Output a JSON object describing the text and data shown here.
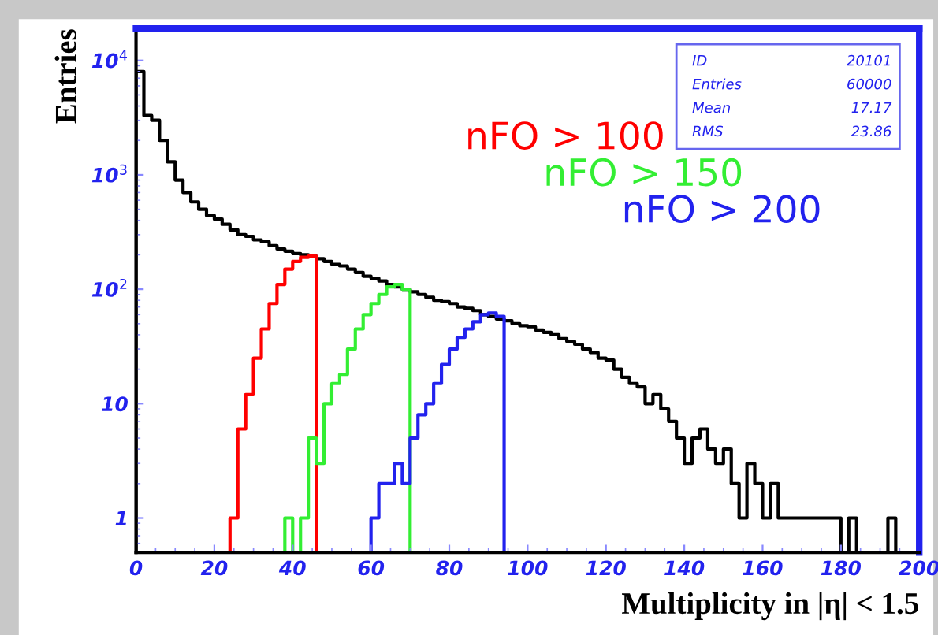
{
  "chart_data": {
    "type": "histogram",
    "xlabel": "Multiplicity in |η| < 1.5",
    "ylabel": "Entries",
    "bins": [
      0,
      2,
      4,
      6,
      8,
      10,
      12,
      14,
      16,
      18,
      20,
      22,
      24,
      26,
      28,
      30,
      32,
      34,
      36,
      38,
      40,
      42,
      44,
      46,
      48,
      50,
      52,
      54,
      56,
      58,
      60,
      62,
      64,
      66,
      68,
      70,
      72,
      74,
      76,
      78,
      80,
      82,
      84,
      86,
      88,
      90,
      92,
      94,
      96,
      98,
      100,
      102,
      104,
      106,
      108,
      110,
      112,
      114,
      116,
      118,
      120,
      122,
      124,
      126,
      128,
      130,
      132,
      134,
      136,
      138,
      140,
      142,
      144,
      146,
      148,
      150,
      152,
      154,
      156,
      158,
      160,
      162,
      164,
      166,
      168,
      170,
      172,
      174,
      176,
      178,
      180,
      182,
      184,
      186,
      188,
      190,
      192,
      194,
      196,
      198,
      200
    ],
    "series": [
      {
        "color": "#000000",
        "values": [
          8000,
          3300,
          3000,
          2000,
          1300,
          900,
          700,
          580,
          500,
          440,
          410,
          370,
          330,
          300,
          290,
          270,
          260,
          240,
          225,
          215,
          205,
          200,
          195,
          185,
          175,
          165,
          160,
          150,
          140,
          130,
          125,
          118,
          110,
          105,
          100,
          95,
          90,
          85,
          80,
          78,
          75,
          70,
          68,
          65,
          60,
          58,
          55,
          53,
          50,
          48,
          47,
          44,
          42,
          40,
          37,
          35,
          33,
          30,
          28,
          25,
          24,
          20,
          17,
          15,
          14,
          10,
          12,
          9,
          7,
          5,
          3,
          5,
          6,
          4,
          3,
          4,
          2,
          1,
          3,
          2,
          1,
          2,
          1,
          1,
          1,
          1,
          1,
          1,
          1,
          1,
          null,
          1,
          null,
          null,
          null,
          null,
          1,
          null,
          null,
          null
        ]
      },
      {
        "name": "nFO > 100",
        "color": "#ff0000",
        "values": [
          null,
          null,
          null,
          null,
          null,
          null,
          null,
          null,
          null,
          null,
          null,
          null,
          1,
          6,
          12,
          25,
          45,
          75,
          110,
          150,
          175,
          190,
          195,
          null,
          null,
          null,
          null,
          null,
          null,
          null,
          null,
          null,
          null,
          null,
          null,
          null,
          null,
          null,
          null,
          null,
          null,
          null,
          null,
          null,
          null,
          null,
          null,
          null,
          null,
          null,
          null,
          null,
          null,
          null,
          null,
          null,
          null,
          null,
          null,
          null,
          null,
          null,
          null,
          null,
          null,
          null,
          null,
          null,
          null,
          null,
          null,
          null,
          null,
          null,
          null,
          null,
          null,
          null,
          null,
          null,
          null,
          null,
          null,
          null,
          null,
          null,
          null,
          null,
          null,
          null,
          null,
          null,
          null,
          null,
          null,
          null,
          null,
          null,
          null,
          null
        ]
      },
      {
        "name": "nFO > 150",
        "color": "#33ee33",
        "values": [
          null,
          null,
          null,
          null,
          null,
          null,
          null,
          null,
          null,
          null,
          null,
          null,
          null,
          null,
          null,
          null,
          null,
          null,
          null,
          1,
          null,
          1,
          5,
          3,
          10,
          15,
          18,
          30,
          45,
          60,
          75,
          90,
          105,
          110,
          100,
          null,
          null,
          null,
          null,
          null,
          null,
          null,
          null,
          null,
          null,
          null,
          null,
          null,
          null,
          null,
          null,
          null,
          null,
          null,
          null,
          null,
          null,
          null,
          null,
          null,
          null,
          null,
          null,
          null,
          null,
          null,
          null,
          null,
          null,
          null,
          null,
          null,
          null,
          null,
          null,
          null,
          null,
          null,
          null,
          null,
          null,
          null,
          null,
          null,
          null,
          null,
          null,
          null,
          null,
          null,
          null,
          null,
          null,
          null,
          null,
          null,
          null,
          null,
          null,
          null
        ]
      },
      {
        "name": "nFO > 200",
        "color": "#2222ee",
        "values": [
          null,
          null,
          null,
          null,
          null,
          null,
          null,
          null,
          null,
          null,
          null,
          null,
          null,
          null,
          null,
          null,
          null,
          null,
          null,
          null,
          null,
          null,
          null,
          null,
          null,
          null,
          null,
          null,
          null,
          null,
          1,
          2,
          2,
          3,
          2,
          5,
          8,
          10,
          15,
          22,
          30,
          38,
          45,
          52,
          60,
          62,
          58,
          null,
          null,
          null,
          null,
          null,
          null,
          null,
          null,
          null,
          null,
          null,
          null,
          null,
          null,
          null,
          null,
          null,
          null,
          null,
          null,
          null,
          null,
          null,
          null,
          null,
          null,
          null,
          null,
          null,
          null,
          null,
          null,
          null,
          null,
          null,
          null,
          null,
          null,
          null,
          null,
          null,
          null,
          null,
          null,
          null,
          null,
          null,
          null,
          null,
          null,
          null,
          null,
          null
        ]
      }
    ],
    "log": "y",
    "xlim": [
      0,
      200
    ],
    "xticks": [
      0,
      20,
      40,
      60,
      80,
      100,
      120,
      140,
      160,
      180,
      200
    ],
    "ylim": [
      0.5,
      19000
    ],
    "yticks": [
      {
        "value": 1,
        "label": "1"
      },
      {
        "value": 10,
        "label": "10"
      },
      {
        "value": 100,
        "label": "10$^{2}$"
      },
      {
        "value": 1000,
        "label": "10$^{3}$"
      },
      {
        "value": 10000,
        "label": "10$^{4}$"
      }
    ],
    "grid": false,
    "legend": false,
    "annotations": [
      "ID",
      "20101",
      "Entries",
      "60000",
      "Mean",
      "17.17",
      "RMS",
      "23.86"
    ]
  }
}
